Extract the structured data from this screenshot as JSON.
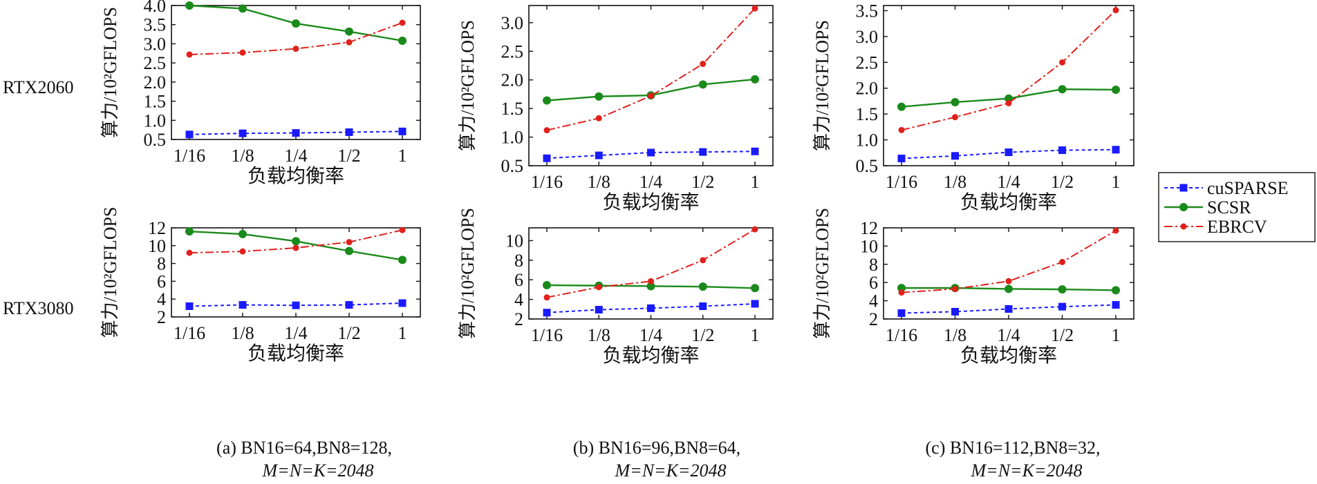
{
  "figure": {
    "row_labels": [
      "RTX2060",
      "RTX3080"
    ],
    "xlabel": "负载均衡率",
    "ylabel": "算力/10²GFLOPS",
    "legend": [
      "cuSPARSE",
      "SCSR",
      "EBRCV"
    ],
    "captions": [
      {
        "tag": "(a)",
        "params": "BN16=64,BN8=128,",
        "dims": "M=N=K=2048"
      },
      {
        "tag": "(b)",
        "params": "BN16=96,BN8=64,",
        "dims": "M=N=K=2048"
      },
      {
        "tag": "(c)",
        "params": "BN16=112,BN8=32,",
        "dims": "M=N=K=2048"
      }
    ],
    "colors": {
      "cuSPARSE": "#1a1aff",
      "SCSR": "#1a8a1a",
      "EBRCV": "#e0201b"
    }
  },
  "chart_data": [
    {
      "type": "line",
      "row": 0,
      "col": 0,
      "categories": [
        "1/16",
        "1/8",
        "1/4",
        "1/2",
        "1"
      ],
      "ylim": [
        0.5,
        4.0
      ],
      "yticks": [
        "0.5",
        "1.0",
        "1.5",
        "2.0",
        "2.5",
        "3.0",
        "3.5",
        "4.0"
      ],
      "xlabel": "负载均衡率",
      "ylabel": "算力/10²GFLOPS",
      "series": [
        {
          "name": "cuSPARSE",
          "values": [
            0.63,
            0.66,
            0.67,
            0.69,
            0.71
          ]
        },
        {
          "name": "SCSR",
          "values": [
            4.0,
            3.92,
            3.53,
            3.32,
            3.08
          ]
        },
        {
          "name": "EBRCV",
          "values": [
            2.72,
            2.77,
            2.87,
            3.04,
            3.55
          ]
        }
      ]
    },
    {
      "type": "line",
      "row": 0,
      "col": 1,
      "categories": [
        "1/16",
        "1/8",
        "1/4",
        "1/2",
        "1"
      ],
      "ylim": [
        0.5,
        3.3
      ],
      "yticks": [
        "0.5",
        "1.0",
        "1.5",
        "2.0",
        "2.5",
        "3.0"
      ],
      "xlabel": "负载均衡率",
      "ylabel": "算力/10²GFLOPS",
      "series": [
        {
          "name": "cuSPARSE",
          "values": [
            0.63,
            0.68,
            0.73,
            0.74,
            0.75
          ]
        },
        {
          "name": "SCSR",
          "values": [
            1.64,
            1.71,
            1.73,
            1.92,
            2.01
          ]
        },
        {
          "name": "EBRCV",
          "values": [
            1.12,
            1.33,
            1.72,
            2.28,
            3.25
          ]
        }
      ]
    },
    {
      "type": "line",
      "row": 0,
      "col": 2,
      "categories": [
        "1/16",
        "1/8",
        "1/4",
        "1/2",
        "1"
      ],
      "ylim": [
        0.5,
        3.6
      ],
      "yticks": [
        "0.5",
        "1.0",
        "1.5",
        "2.0",
        "2.5",
        "3.0",
        "3.5"
      ],
      "xlabel": "负载均衡率",
      "ylabel": "算力/10²GFLOPS",
      "series": [
        {
          "name": "cuSPARSE",
          "values": [
            0.64,
            0.69,
            0.76,
            0.8,
            0.81
          ]
        },
        {
          "name": "SCSR",
          "values": [
            1.64,
            1.73,
            1.8,
            1.98,
            1.97
          ]
        },
        {
          "name": "EBRCV",
          "values": [
            1.19,
            1.44,
            1.71,
            2.5,
            3.51
          ]
        }
      ]
    },
    {
      "type": "line",
      "row": 1,
      "col": 0,
      "categories": [
        "1/16",
        "1/8",
        "1/4",
        "1/2",
        "1"
      ],
      "ylim": [
        2,
        12
      ],
      "yticks": [
        "2",
        "4",
        "6",
        "8",
        "10",
        "12"
      ],
      "xlabel": "负载均衡率",
      "ylabel": "算力/10²GFLOPS",
      "series": [
        {
          "name": "cuSPARSE",
          "values": [
            3.2,
            3.35,
            3.3,
            3.35,
            3.55
          ]
        },
        {
          "name": "SCSR",
          "values": [
            11.6,
            11.3,
            10.5,
            9.4,
            8.4
          ]
        },
        {
          "name": "EBRCV",
          "values": [
            9.2,
            9.35,
            9.75,
            10.4,
            11.75
          ]
        }
      ]
    },
    {
      "type": "line",
      "row": 1,
      "col": 1,
      "categories": [
        "1/16",
        "1/8",
        "1/4",
        "1/2",
        "1"
      ],
      "ylim": [
        2,
        11.3
      ],
      "yticks": [
        "2",
        "4",
        "6",
        "8",
        "10"
      ],
      "xlabel": "负载均衡率",
      "ylabel": "算力/10²GFLOPS",
      "series": [
        {
          "name": "cuSPARSE",
          "values": [
            2.65,
            2.95,
            3.1,
            3.3,
            3.55
          ]
        },
        {
          "name": "SCSR",
          "values": [
            5.45,
            5.4,
            5.35,
            5.3,
            5.15
          ]
        },
        {
          "name": "EBRCV",
          "values": [
            4.2,
            5.25,
            5.85,
            8.0,
            11.15
          ]
        }
      ]
    },
    {
      "type": "line",
      "row": 1,
      "col": 2,
      "categories": [
        "1/16",
        "1/8",
        "1/4",
        "1/2",
        "1"
      ],
      "ylim": [
        2,
        12
      ],
      "yticks": [
        "2",
        "4",
        "6",
        "8",
        "10",
        "12"
      ],
      "xlabel": "负载均衡率",
      "ylabel": "算力/10²GFLOPS",
      "series": [
        {
          "name": "cuSPARSE",
          "values": [
            2.65,
            2.8,
            3.1,
            3.35,
            3.55
          ]
        },
        {
          "name": "SCSR",
          "values": [
            5.4,
            5.4,
            5.3,
            5.25,
            5.15
          ]
        },
        {
          "name": "EBRCV",
          "values": [
            4.9,
            5.3,
            6.15,
            8.25,
            11.7
          ]
        }
      ]
    }
  ]
}
